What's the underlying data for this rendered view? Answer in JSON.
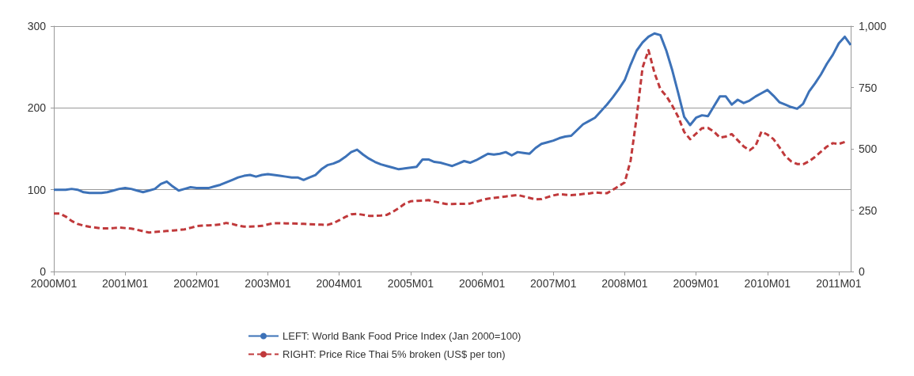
{
  "chart_data": {
    "type": "line",
    "categories": [
      "2000M01",
      null,
      null,
      null,
      null,
      null,
      null,
      null,
      null,
      null,
      null,
      null,
      "2001M01",
      null,
      null,
      null,
      null,
      null,
      null,
      null,
      null,
      null,
      null,
      null,
      "2002M01",
      null,
      null,
      null,
      null,
      null,
      null,
      null,
      null,
      null,
      null,
      null,
      "2003M01",
      null,
      null,
      null,
      null,
      null,
      null,
      null,
      null,
      null,
      null,
      null,
      "2004M01",
      null,
      null,
      null,
      null,
      null,
      null,
      null,
      null,
      null,
      null,
      null,
      "2005M01",
      null,
      null,
      null,
      null,
      null,
      null,
      null,
      null,
      null,
      null,
      null,
      "2006M01",
      null,
      null,
      null,
      null,
      null,
      null,
      null,
      null,
      null,
      null,
      null,
      "2007M01",
      null,
      null,
      null,
      null,
      null,
      null,
      null,
      null,
      null,
      null,
      null,
      "2008M01",
      null,
      null,
      null,
      null,
      null,
      null,
      null,
      null,
      null,
      null,
      null,
      "2009M01",
      null,
      null,
      null,
      null,
      null,
      null,
      null,
      null,
      null,
      null,
      null,
      "2010M01",
      null,
      null,
      null,
      null,
      null,
      null,
      null,
      null,
      null,
      null,
      null,
      "2011M01",
      null,
      null
    ],
    "ylim": [
      0,
      300
    ],
    "yticks": [
      0,
      100,
      200,
      300
    ],
    "y2lim": [
      0,
      1000
    ],
    "y2ticks": [
      0,
      250,
      500,
      750,
      {
        "value": 1000,
        "label": "1,000"
      }
    ],
    "grid": "y",
    "legend": "bottom",
    "marker": "none",
    "series": [
      {
        "name": "LEFT: World Bank Food Price Index (Jan 2000=100)",
        "color": "#3d72b8",
        "line_style": "solid",
        "values": [
          100,
          100,
          100,
          101,
          100,
          97,
          96,
          96,
          96,
          97,
          99,
          101,
          102,
          101,
          99,
          97,
          99,
          101,
          107,
          110,
          104,
          99,
          101,
          103,
          102,
          102,
          102,
          104,
          106,
          109,
          112,
          115,
          117,
          118,
          116,
          118,
          119,
          118,
          117,
          116,
          115,
          115,
          112,
          115,
          118,
          125,
          130,
          132,
          135,
          140,
          146,
          149,
          143,
          138,
          134,
          131,
          129,
          127,
          125,
          126,
          127,
          128,
          137,
          137,
          134,
          133,
          131,
          129,
          132,
          135,
          133,
          136,
          140,
          144,
          143,
          144,
          146,
          142,
          146,
          145,
          144,
          151,
          156,
          158,
          160,
          163,
          165,
          166,
          173,
          180,
          184,
          188,
          196,
          204,
          213,
          223,
          234,
          253,
          270,
          280,
          287,
          291,
          289,
          270,
          246,
          218,
          189,
          179,
          188,
          191,
          190,
          202,
          214,
          214,
          204,
          210,
          206,
          209,
          214,
          218,
          222,
          215,
          207,
          204,
          201,
          199,
          205,
          220,
          230,
          241,
          254,
          265,
          279,
          287,
          277
        ]
      },
      {
        "name": "RIGHT: Price Rice Thai 5% broken (US$ per ton)",
        "color": "#c0393b",
        "line_style": "dashed",
        "axis": "y2",
        "values": [
          236,
          236,
          224,
          206,
          194,
          187,
          182,
          179,
          176,
          176,
          177,
          179,
          177,
          175,
          170,
          164,
          159,
          161,
          163,
          165,
          167,
          169,
          172,
          178,
          185,
          187,
          188,
          189,
          192,
          198,
          194,
          187,
          183,
          183,
          184,
          186,
          192,
          197,
          197,
          196,
          196,
          195,
          194,
          193,
          192,
          191,
          190,
          197,
          209,
          222,
          233,
          235,
          231,
          227,
          227,
          228,
          231,
          243,
          258,
          276,
          286,
          288,
          289,
          291,
          285,
          280,
          275,
          275,
          276,
          276,
          277,
          284,
          291,
          297,
          300,
          303,
          306,
          309,
          312,
          306,
          300,
          294,
          295,
          303,
          310,
          315,
          313,
          311,
          313,
          316,
          318,
          322,
          320,
          319,
          333,
          348,
          363,
          453,
          627,
          831,
          902,
          810,
          743,
          715,
          676,
          630,
          569,
          539,
          562,
          584,
          585,
          570,
          546,
          550,
          560,
          535,
          510,
          494,
          512,
          570,
          558,
          540,
          507,
          470,
          449,
          438,
          437,
          449,
          467,
          488,
          509,
          523,
          520,
          528,
          null
        ]
      }
    ]
  }
}
